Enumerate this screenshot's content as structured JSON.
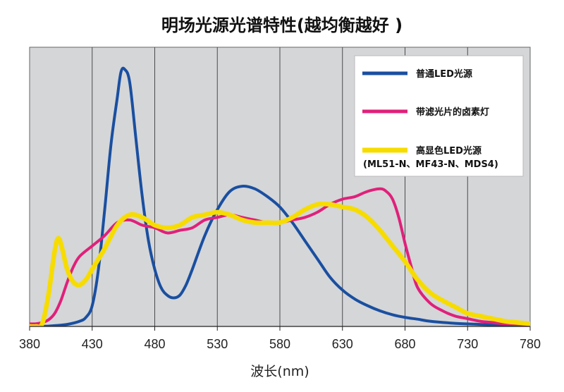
{
  "chart_data": {
    "type": "line",
    "title": "明场光源光谱特性(越均衡越好 )",
    "xlabel": "波长(nm)",
    "ylabel": "",
    "xlim": [
      380,
      780
    ],
    "ylim": [
      0,
      100
    ],
    "xticks": [
      "380",
      "430",
      "480",
      "530",
      "580",
      "630",
      "680",
      "730",
      "780"
    ],
    "grid": "vertical",
    "background": "#d4d6d8",
    "legend_position": "top-right",
    "series": [
      {
        "name": "普通LED光源",
        "color": "#1a4fa0",
        "x": [
          380,
          390,
          400,
          410,
          420,
          425,
          430,
          435,
          440,
          445,
          450,
          453,
          456,
          460,
          465,
          470,
          475,
          480,
          485,
          490,
          495,
          500,
          505,
          510,
          520,
          530,
          540,
          550,
          560,
          570,
          580,
          590,
          600,
          610,
          620,
          630,
          640,
          650,
          660,
          670,
          680,
          690,
          700,
          720,
          740,
          760,
          780
        ],
        "y": [
          0,
          0,
          0.3,
          0.8,
          2,
          3.5,
          8,
          22,
          45,
          70,
          88,
          98,
          99,
          94,
          72,
          50,
          33,
          22,
          15,
          12,
          11,
          12,
          16,
          22,
          35,
          45,
          52,
          54,
          53,
          50,
          46,
          40,
          33,
          26,
          19,
          14,
          10.5,
          8,
          6,
          4.5,
          3.5,
          2.8,
          2,
          1.2,
          0.8,
          0.4,
          0.2
        ]
      },
      {
        "name": "带滤光片的卤素灯",
        "color": "#e0207a",
        "x": [
          380,
          385,
          390,
          395,
          400,
          405,
          410,
          415,
          420,
          430,
          440,
          450,
          460,
          470,
          480,
          490,
          500,
          510,
          520,
          530,
          540,
          550,
          560,
          570,
          580,
          590,
          600,
          610,
          620,
          630,
          640,
          650,
          660,
          665,
          670,
          675,
          680,
          685,
          690,
          700,
          710,
          720,
          730,
          740,
          750,
          760,
          780
        ],
        "y": [
          1,
          1,
          1.5,
          2.5,
          5,
          10,
          17,
          23,
          27,
          31,
          35,
          40,
          41,
          39,
          38,
          36,
          37,
          38,
          41,
          42,
          43,
          42,
          41,
          40,
          40,
          41,
          42,
          44,
          47,
          49,
          50,
          52,
          53,
          52,
          49,
          42,
          32,
          23,
          15,
          9,
          6,
          4,
          3,
          2,
          1.5,
          1,
          0.5
        ]
      },
      {
        "name": "高显色LED光源",
        "sublabel": "(ML51-N、MF43-N、MDS4)",
        "color": "#f7dc00",
        "x": [
          380,
          385,
          390,
          395,
          400,
          403,
          406,
          410,
          415,
          420,
          425,
          430,
          440,
          450,
          460,
          470,
          480,
          490,
          500,
          510,
          520,
          530,
          540,
          550,
          560,
          570,
          580,
          590,
          600,
          610,
          620,
          630,
          640,
          650,
          660,
          670,
          680,
          690,
          700,
          710,
          720,
          730,
          740,
          750,
          760,
          770,
          780
        ],
        "y": [
          0,
          0,
          1,
          12,
          29,
          34,
          30,
          22,
          17,
          16,
          18,
          22,
          30,
          39,
          43,
          42,
          39,
          38,
          39,
          42,
          43,
          44,
          43,
          41,
          40,
          40,
          40,
          42,
          45,
          47,
          47,
          46,
          45,
          42,
          37,
          31,
          25,
          18,
          13,
          10,
          7.5,
          5,
          4,
          3,
          2,
          1.5,
          1
        ]
      }
    ]
  }
}
